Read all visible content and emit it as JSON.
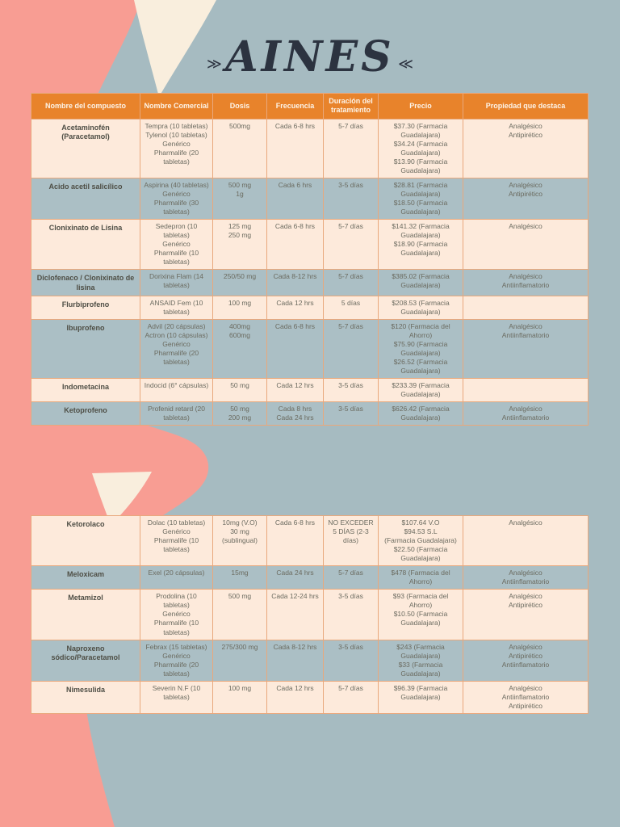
{
  "page": {
    "title": "AINES",
    "flourish_left": "≫",
    "flourish_right": "≪"
  },
  "colors": {
    "background": "#a6bbc1",
    "blob_pink": "#f89d93",
    "blob_cream": "#f9eedd",
    "header_bg": "#e8832b",
    "header_text": "#fdf4e9",
    "row_light": "#fdeadb",
    "row_dark": "#abbfc5",
    "border": "#e9a87c",
    "text": "#6b6b60",
    "text_strong": "#4e4e45",
    "title_color": "#2c3340"
  },
  "table": {
    "headers": [
      "Nombre del compuesto",
      "Nombre Comercial",
      "Dosis",
      "Frecuencia",
      "Duración del tratamiento",
      "Precio",
      "Propiedad que destaca"
    ],
    "sections": [
      {
        "rows": [
          {
            "shade": "light",
            "cells": [
              "Acetaminofén\n(Paracetamol)",
              "Tempra (10 tabletas)\nTylenol (10 tabletas)\nGenérico\nPharmalife (20 tabletas)",
              "500mg",
              "Cada 6-8 hrs",
              "5-7 días",
              "$37.30 (Farmacia Guadalajara)\n$34.24 (Farmacia Guadalajara)\n$13.90 (Farmacia Guadalajara)",
              "Analgésico\nAntipirético"
            ]
          },
          {
            "shade": "dark",
            "cells": [
              "Acido acetil salicílico",
              "Aspirina (40 tabletas)\nGenérico\nPharmalife (30 tabletas)",
              "500 mg\n1g",
              "Cada 6 hrs",
              "3-5 días",
              "$28.81 (Farmacia Guadalajara)\n$18.50 (Farmacia Guadalajara)",
              "Analgésico\nAntipirético"
            ]
          },
          {
            "shade": "light",
            "cells": [
              "Clonixinato de Lisina",
              "Sedepron (10 tabletas)\nGenérico\nPharmalife (10 tabletas)",
              "125 mg\n250 mg",
              "Cada 6-8 hrs",
              "5-7 días",
              "$141.32 (Farmacia Guadalajara)\n$18.90 (Farmacia Guadalajara)",
              "Analgésico"
            ]
          },
          {
            "shade": "dark",
            "cells": [
              "Diclofenaco / Clonixinato de lisina",
              "Dorixina Flam (14 tabletas)",
              "250/50 mg",
              "Cada 8-12 hrs",
              "5-7 días",
              "$385.02 (Farmacia Guadalajara)",
              "Analgésico\nAntiinflamatorio"
            ]
          },
          {
            "shade": "light",
            "cells": [
              "Flurbiprofeno",
              "ANSAID Fem (10 tabletas)",
              "100 mg",
              "Cada 12 hrs",
              "5 días",
              "$208.53 (Farmacia Guadalajara)",
              ""
            ]
          },
          {
            "shade": "dark",
            "cells": [
              "Ibuprofeno",
              "Advil (20 cápsulas)\nActron (10 cápsulas)\nGenérico\nPharmalife (20 tabletas)",
              "400mg\n600mg",
              "Cada 6-8 hrs",
              "5-7 días",
              "$120 (Farmacia del Ahorro)\n$75.90 (Farmacia Guadalajara)\n$26.52 (Farmacia Guadalajara)",
              "Analgésico\nAntiinflamatorio"
            ]
          },
          {
            "shade": "light",
            "cells": [
              "Indometacina",
              "Indocid (6° cápsulas)",
              "50 mg",
              "Cada 12 hrs",
              "3-5 días",
              "$233.39 (Farmacia Guadalajara)",
              ""
            ]
          },
          {
            "shade": "dark",
            "cells": [
              "Ketoprofeno",
              "Profenid retard (20 tabletas)",
              "50 mg\n200 mg",
              "Cada 8 hrs\nCada 24 hrs",
              "3-5 días",
              "$626.42 (Farmacia Guadalajara)",
              "Analgésico\nAntiinflamatorio"
            ]
          }
        ]
      },
      {
        "rows": [
          {
            "shade": "light",
            "cells": [
              "Ketorolaco",
              "Dolac (10 tabletas)\nGenérico\nPharmalife (10 tabletas)",
              "10mg (V.O)\n30 mg (sublingual)",
              "Cada 6-8 hrs",
              "NO EXCEDER 5 DÍAS (2-3 días)",
              "$107.64 V.O\n$94.53 S.L\n(Farmacia Guadalajara)\n$22.50 (Farmacia Guadalajara)",
              "Analgésico"
            ]
          },
          {
            "shade": "dark",
            "cells": [
              "Meloxicam",
              "Exel (20 cápsulas)",
              "15mg",
              "Cada 24 hrs",
              "5-7 días",
              "$478 (Farmacia del Ahorro)",
              "Analgésico\nAntiinflamatorio"
            ]
          },
          {
            "shade": "light",
            "cells": [
              "Metamizol",
              "Prodolina (10 tabletas)\nGenérico\nPharmalife (10 tabletas)",
              "500 mg",
              "Cada 12-24 hrs",
              "3-5 días",
              "$93 (Farmacia del Ahorro)\n$10.50 (Farmacia Guadalajara)",
              "Analgésico\nAntipirético"
            ]
          },
          {
            "shade": "dark",
            "cells": [
              "Naproxeno sódico/Paracetamol",
              "Febrax (15 tabletas)\nGenérico\nPharmalife (20 tabletas)",
              "275/300 mg",
              "Cada 8-12 hrs",
              "3-5 días",
              "$243 (Farmacia Guadalajara)\n$33 (Farmacia Guadalajara)",
              "Analgésico\nAntipirético\nAntiinflamatorio"
            ]
          },
          {
            "shade": "light",
            "cells": [
              "Nimesulida",
              "Severin N.F (10 tabletas)",
              "100 mg",
              "Cada 12 hrs",
              "5-7 días",
              "$96.39 (Farmacia Guadalajara)",
              "Analgésico\nAntiinflamatorio\nAntipirético"
            ]
          }
        ]
      }
    ]
  }
}
